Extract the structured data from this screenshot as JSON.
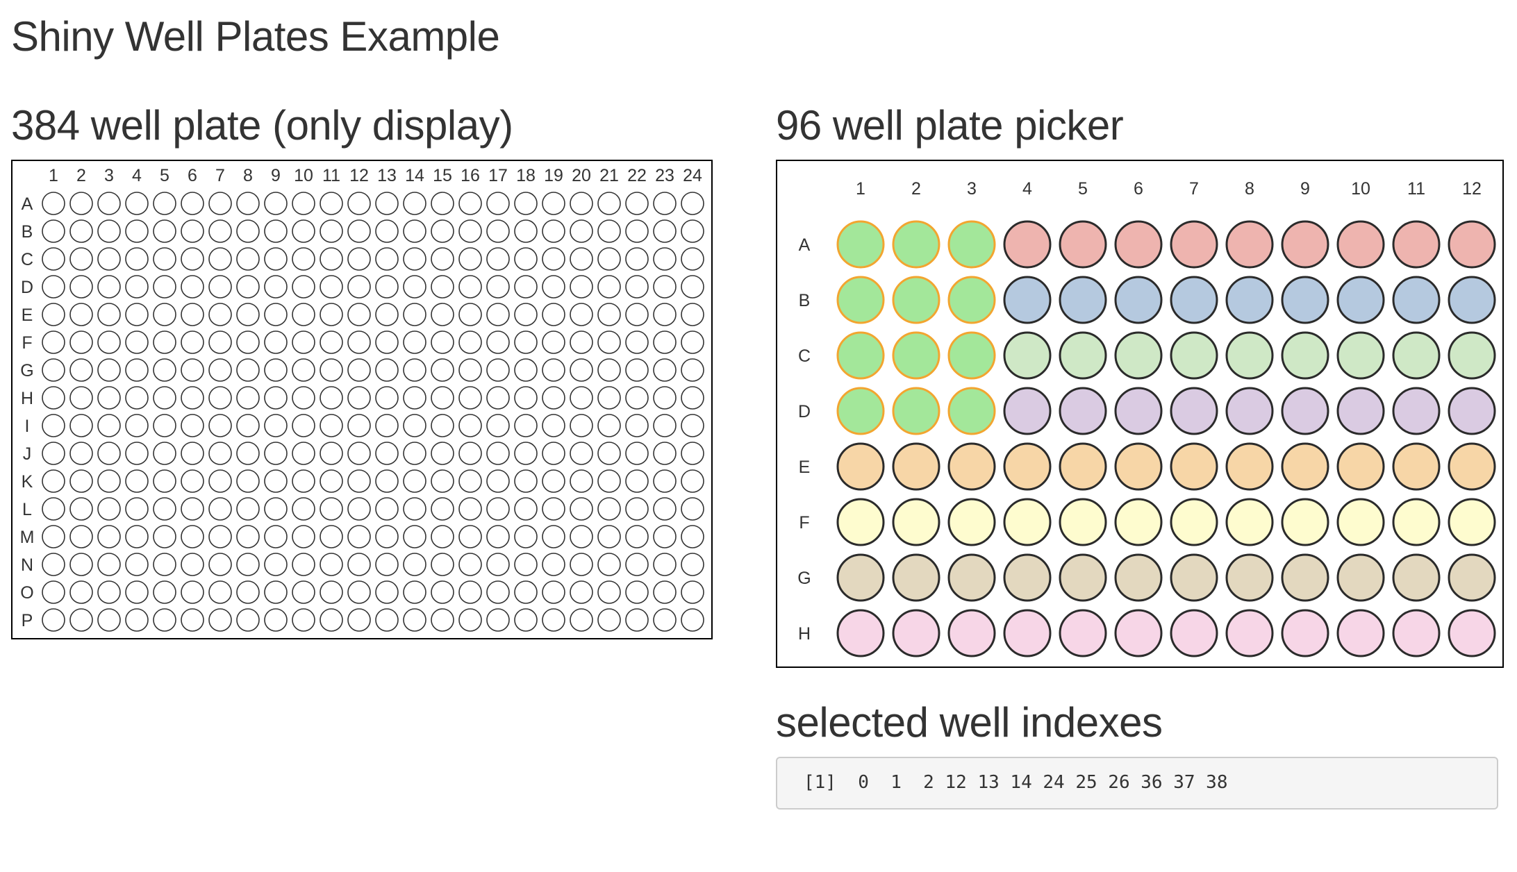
{
  "app": {
    "title": "Shiny Well Plates Example"
  },
  "plate384": {
    "title": "384 well plate (only display)",
    "columns": [
      "1",
      "2",
      "3",
      "4",
      "5",
      "6",
      "7",
      "8",
      "9",
      "10",
      "11",
      "12",
      "13",
      "14",
      "15",
      "16",
      "17",
      "18",
      "19",
      "20",
      "21",
      "22",
      "23",
      "24"
    ],
    "rows": [
      "A",
      "B",
      "C",
      "D",
      "E",
      "F",
      "G",
      "H",
      "I",
      "J",
      "K",
      "L",
      "M",
      "N",
      "O",
      "P"
    ]
  },
  "plate96": {
    "title": "96 well plate picker",
    "columns": [
      "1",
      "2",
      "3",
      "4",
      "5",
      "6",
      "7",
      "8",
      "9",
      "10",
      "11",
      "12"
    ],
    "rows": [
      "A",
      "B",
      "C",
      "D",
      "E",
      "F",
      "G",
      "H"
    ],
    "row_colors": [
      "#eeb4af",
      "#b5c9df",
      "#cfe8c6",
      "#dacbe2",
      "#f7d6a7",
      "#fefccf",
      "#e3d8bf",
      "#f7d6e7"
    ],
    "selected_color": "#a3e79a",
    "selected_stroke": "#f2a530",
    "default_stroke": "#2b2b2b",
    "selected_wells": [
      0,
      1,
      2,
      12,
      13,
      14,
      24,
      25,
      26,
      36,
      37,
      38
    ]
  },
  "selected": {
    "title": "selected well indexes",
    "output": "[1]  0  1  2 12 13 14 24 25 26 36 37 38"
  }
}
